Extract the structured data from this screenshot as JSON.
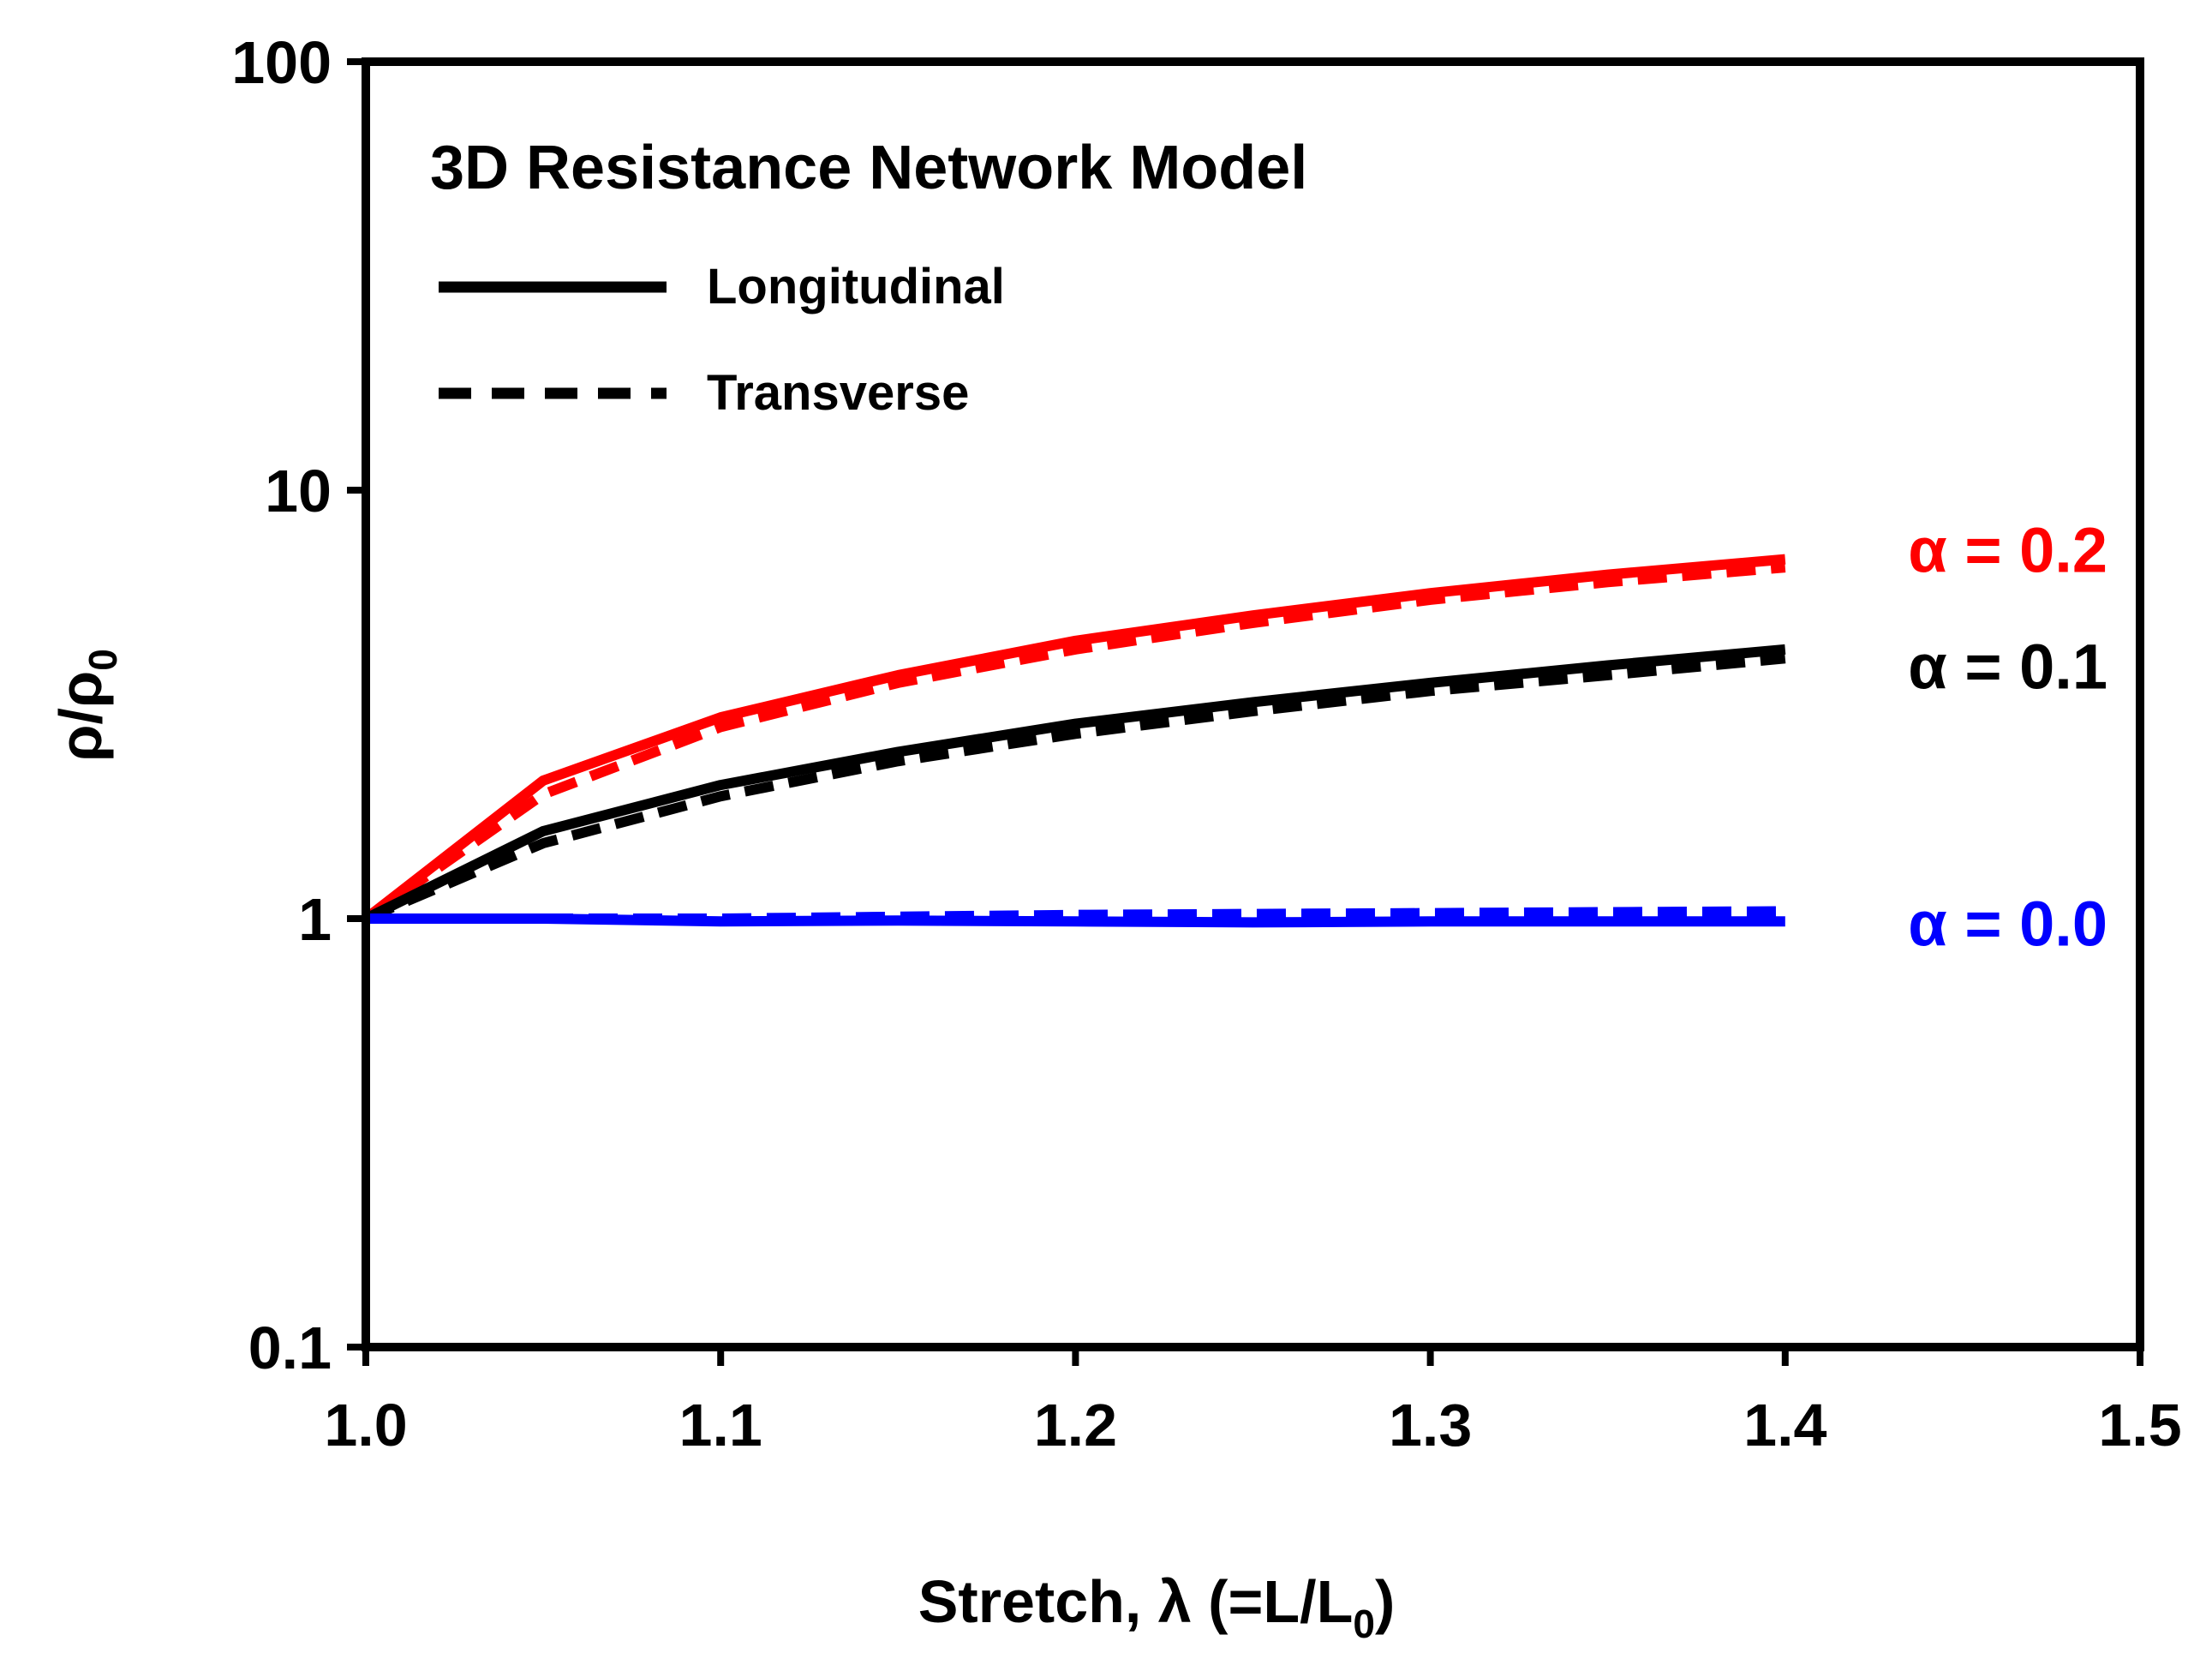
{
  "chart_data": {
    "type": "line",
    "title": "3D Resistance Network Model",
    "xlabel": "Stretch, λ (=L/L",
    "xlabel_sub": "0",
    "xlabel_end": ")",
    "ylabel": "ρ/ρ",
    "ylabel_sub": "0",
    "yscale": "log",
    "xlim": [
      1.0,
      1.5
    ],
    "ylim": [
      0.1,
      100
    ],
    "x_ticks": [
      1.0,
      1.1,
      1.2,
      1.3,
      1.4,
      1.5
    ],
    "x_tick_labels": [
      "1.0",
      "1.1",
      "1.2",
      "1.3",
      "1.4",
      "1.5"
    ],
    "y_ticks": [
      0.1,
      1,
      10,
      100
    ],
    "y_tick_labels": [
      "0.1",
      "1",
      "10",
      "100"
    ],
    "legend": {
      "position": "top-left",
      "entries": [
        {
          "label": "Longitudinal",
          "style": "solid"
        },
        {
          "label": "Transverse",
          "style": "dashed"
        }
      ]
    },
    "x": [
      1.0,
      1.05,
      1.1,
      1.15,
      1.2,
      1.25,
      1.3,
      1.35,
      1.4
    ],
    "series": [
      {
        "name": "α = 0.2 Longitudinal",
        "color": "#ff0000",
        "style": "solid",
        "values": [
          1.0,
          2.1,
          2.95,
          3.7,
          4.45,
          5.1,
          5.75,
          6.35,
          6.9
        ]
      },
      {
        "name": "α = 0.2 Transverse",
        "color": "#ff0000",
        "style": "dashed",
        "values": [
          1.0,
          1.95,
          2.8,
          3.55,
          4.25,
          4.9,
          5.55,
          6.1,
          6.6
        ]
      },
      {
        "name": "α = 0.1 Longitudinal",
        "color": "#000000",
        "style": "solid",
        "values": [
          1.0,
          1.6,
          2.05,
          2.45,
          2.85,
          3.2,
          3.55,
          3.9,
          4.25
        ]
      },
      {
        "name": "α = 0.1 Transverse",
        "color": "#000000",
        "style": "dashed",
        "values": [
          1.0,
          1.5,
          1.93,
          2.33,
          2.7,
          3.05,
          3.4,
          3.7,
          4.05
        ]
      },
      {
        "name": "α = 0.0 Longitudinal",
        "color": "#0000ff",
        "style": "solid",
        "values": [
          1.0,
          1.0,
          0.985,
          0.99,
          0.985,
          0.98,
          0.985,
          0.985,
          0.985
        ]
      },
      {
        "name": "α = 0.0 Transverse",
        "color": "#0000ff",
        "style": "dashed",
        "values": [
          1.0,
          1.0,
          1.0,
          1.01,
          1.02,
          1.025,
          1.03,
          1.035,
          1.04
        ]
      }
    ],
    "annotations": [
      {
        "text": "α = 0.2",
        "color": "#ff0000",
        "y": 7.3
      },
      {
        "text": "α = 0.1",
        "color": "#000000",
        "y": 3.9
      },
      {
        "text": "α = 0.0",
        "color": "#0000ff",
        "y": 0.98
      }
    ]
  }
}
